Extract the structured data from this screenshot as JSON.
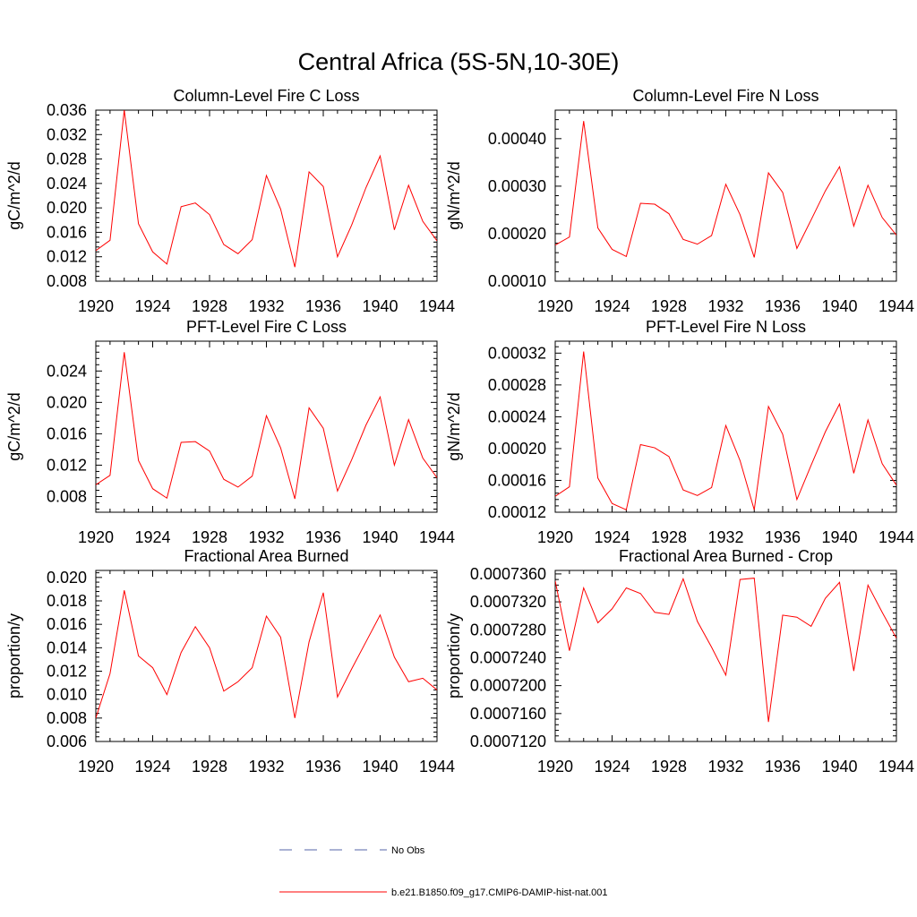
{
  "figure": {
    "title": "Central Africa (5S-5N,10-30E)",
    "legend": [
      {
        "label": "No Obs",
        "color": "#5566aa",
        "dash": "dashed"
      },
      {
        "label": "b.e21.B1850.f09_g17.CMIP6-DAMIP-hist-nat.001",
        "color": "#ff0000",
        "dash": "solid"
      }
    ]
  },
  "chart_data": [
    {
      "type": "line",
      "title": "Column-Level Fire C Loss",
      "ylabel": "gC/m^2/d",
      "xlim": [
        1920,
        1944
      ],
      "ylim": [
        0.008,
        0.036
      ],
      "x_ticks": [
        "1920",
        "1924",
        "1928",
        "1932",
        "1936",
        "1940",
        "1944"
      ],
      "y_ticks": [
        "0.008",
        "0.012",
        "0.016",
        "0.020",
        "0.024",
        "0.028",
        "0.032",
        "0.036"
      ],
      "x": [
        1920,
        1921,
        1922,
        1923,
        1924,
        1925,
        1926,
        1927,
        1928,
        1929,
        1930,
        1931,
        1932,
        1933,
        1934,
        1935,
        1936,
        1937,
        1938,
        1939,
        1940,
        1941,
        1942,
        1943,
        1944
      ],
      "series": [
        {
          "color": "#ff0000",
          "values": [
            0.013,
            0.0147,
            0.036,
            0.0174,
            0.0128,
            0.0108,
            0.0202,
            0.0208,
            0.0189,
            0.014,
            0.0125,
            0.0148,
            0.0253,
            0.0198,
            0.0103,
            0.0259,
            0.0235,
            0.012,
            0.0172,
            0.0233,
            0.0285,
            0.0164,
            0.0237,
            0.0178,
            0.0146
          ]
        }
      ]
    },
    {
      "type": "line",
      "title": "Column-Level Fire N Loss",
      "ylabel": "gN/m^2/d",
      "xlim": [
        1920,
        1944
      ],
      "ylim": [
        0.0001,
        0.00046
      ],
      "x_ticks": [
        "1920",
        "1924",
        "1928",
        "1932",
        "1936",
        "1940",
        "1944"
      ],
      "y_ticks": [
        "0.00010",
        "0.00020",
        "0.00030",
        "0.00040"
      ],
      "x": [
        1920,
        1921,
        1922,
        1923,
        1924,
        1925,
        1926,
        1927,
        1928,
        1929,
        1930,
        1931,
        1932,
        1933,
        1934,
        1935,
        1936,
        1937,
        1938,
        1939,
        1940,
        1941,
        1942,
        1943,
        1944
      ],
      "series": [
        {
          "color": "#ff0000",
          "values": [
            0.000176,
            0.000193,
            0.000437,
            0.000212,
            0.000167,
            0.000152,
            0.000264,
            0.000262,
            0.000242,
            0.000188,
            0.000178,
            0.000196,
            0.000304,
            0.00024,
            0.00015,
            0.000328,
            0.000287,
            0.000169,
            0.000229,
            0.00029,
            0.000341,
            0.000216,
            0.000302,
            0.000234,
            0.000197
          ]
        }
      ]
    },
    {
      "type": "line",
      "title": "PFT-Level Fire C Loss",
      "ylabel": "gC/m^2/d",
      "xlim": [
        1920,
        1944
      ],
      "ylim": [
        0.006,
        0.0278
      ],
      "x_ticks": [
        "1920",
        "1924",
        "1928",
        "1932",
        "1936",
        "1940",
        "1944"
      ],
      "y_ticks": [
        "0.008",
        "0.012",
        "0.016",
        "0.020",
        "0.024"
      ],
      "x": [
        1920,
        1921,
        1922,
        1923,
        1924,
        1925,
        1926,
        1927,
        1928,
        1929,
        1930,
        1931,
        1932,
        1933,
        1934,
        1935,
        1936,
        1937,
        1938,
        1939,
        1940,
        1941,
        1942,
        1943,
        1944
      ],
      "series": [
        {
          "color": "#ff0000",
          "values": [
            0.0095,
            0.0107,
            0.0264,
            0.0126,
            0.009,
            0.0078,
            0.0149,
            0.015,
            0.0138,
            0.0102,
            0.0092,
            0.0106,
            0.0183,
            0.0142,
            0.0077,
            0.0193,
            0.0167,
            0.0087,
            0.0127,
            0.0171,
            0.0207,
            0.012,
            0.0178,
            0.0129,
            0.0104
          ]
        }
      ]
    },
    {
      "type": "line",
      "title": "PFT-Level Fire N Loss",
      "ylabel": "gN/m^2/d",
      "xlim": [
        1920,
        1944
      ],
      "ylim": [
        0.00012,
        0.000335
      ],
      "x_ticks": [
        "1920",
        "1924",
        "1928",
        "1932",
        "1936",
        "1940",
        "1944"
      ],
      "y_ticks": [
        "0.00012",
        "0.00016",
        "0.00020",
        "0.00024",
        "0.00028",
        "0.00032"
      ],
      "x": [
        1920,
        1921,
        1922,
        1923,
        1924,
        1925,
        1926,
        1927,
        1928,
        1929,
        1930,
        1931,
        1932,
        1933,
        1934,
        1935,
        1936,
        1937,
        1938,
        1939,
        1940,
        1941,
        1942,
        1943,
        1944
      ],
      "series": [
        {
          "color": "#ff0000",
          "values": [
            0.00014,
            0.000152,
            0.000322,
            0.000163,
            0.000131,
            0.000123,
            0.000205,
            0.000201,
            0.00019,
            0.000148,
            0.000141,
            0.000151,
            0.000229,
            0.000185,
            0.000123,
            0.000253,
            0.000218,
            0.000136,
            0.000179,
            0.000221,
            0.000256,
            0.000169,
            0.000236,
            0.000181,
            0.000154
          ]
        }
      ]
    },
    {
      "type": "line",
      "title": "Fractional Area Burned",
      "ylabel": "proportion/y",
      "xlim": [
        1920,
        1944
      ],
      "ylim": [
        0.006,
        0.0206
      ],
      "x_ticks": [
        "1920",
        "1924",
        "1928",
        "1932",
        "1936",
        "1940",
        "1944"
      ],
      "y_ticks": [
        "0.006",
        "0.008",
        "0.010",
        "0.012",
        "0.014",
        "0.016",
        "0.018",
        "0.020"
      ],
      "x": [
        1920,
        1921,
        1922,
        1923,
        1924,
        1925,
        1926,
        1927,
        1928,
        1929,
        1930,
        1931,
        1932,
        1933,
        1934,
        1935,
        1936,
        1937,
        1938,
        1939,
        1940,
        1941,
        1942,
        1943,
        1944
      ],
      "series": [
        {
          "color": "#ff0000",
          "values": [
            0.008,
            0.0118,
            0.0189,
            0.0133,
            0.0123,
            0.01,
            0.0136,
            0.0158,
            0.014,
            0.0103,
            0.0111,
            0.0123,
            0.0167,
            0.0149,
            0.008,
            0.0145,
            0.0187,
            0.0098,
            0.0122,
            0.0145,
            0.0168,
            0.0132,
            0.0111,
            0.0114,
            0.0104
          ]
        }
      ]
    },
    {
      "type": "line",
      "title": "Fractional Area Burned - Crop",
      "ylabel": "proportion/y",
      "xlim": [
        1920,
        1944
      ],
      "ylim": [
        0.000712,
        0.0007365
      ],
      "x_ticks": [
        "1920",
        "1924",
        "1928",
        "1932",
        "1936",
        "1940",
        "1944"
      ],
      "y_ticks": [
        "0.0007120",
        "0.0007160",
        "0.0007200",
        "0.0007240",
        "0.0007280",
        "0.0007320",
        "0.0007360"
      ],
      "x": [
        1920,
        1921,
        1922,
        1923,
        1924,
        1925,
        1926,
        1927,
        1928,
        1929,
        1930,
        1931,
        1932,
        1933,
        1934,
        1935,
        1936,
        1937,
        1938,
        1939,
        1940,
        1941,
        1942,
        1943,
        1944
      ],
      "series": [
        {
          "color": "#ff0000",
          "values": [
            0.000735,
            0.000725,
            0.000734,
            0.000729,
            0.000731,
            0.000734,
            0.0007332,
            0.0007305,
            0.0007302,
            0.0007353,
            0.0007292,
            0.0007255,
            0.0007215,
            0.0007352,
            0.0007354,
            0.0007148,
            0.0007301,
            0.0007298,
            0.0007285,
            0.0007325,
            0.0007348,
            0.0007221,
            0.0007344,
            0.0007305,
            0.0007268
          ]
        }
      ]
    }
  ]
}
